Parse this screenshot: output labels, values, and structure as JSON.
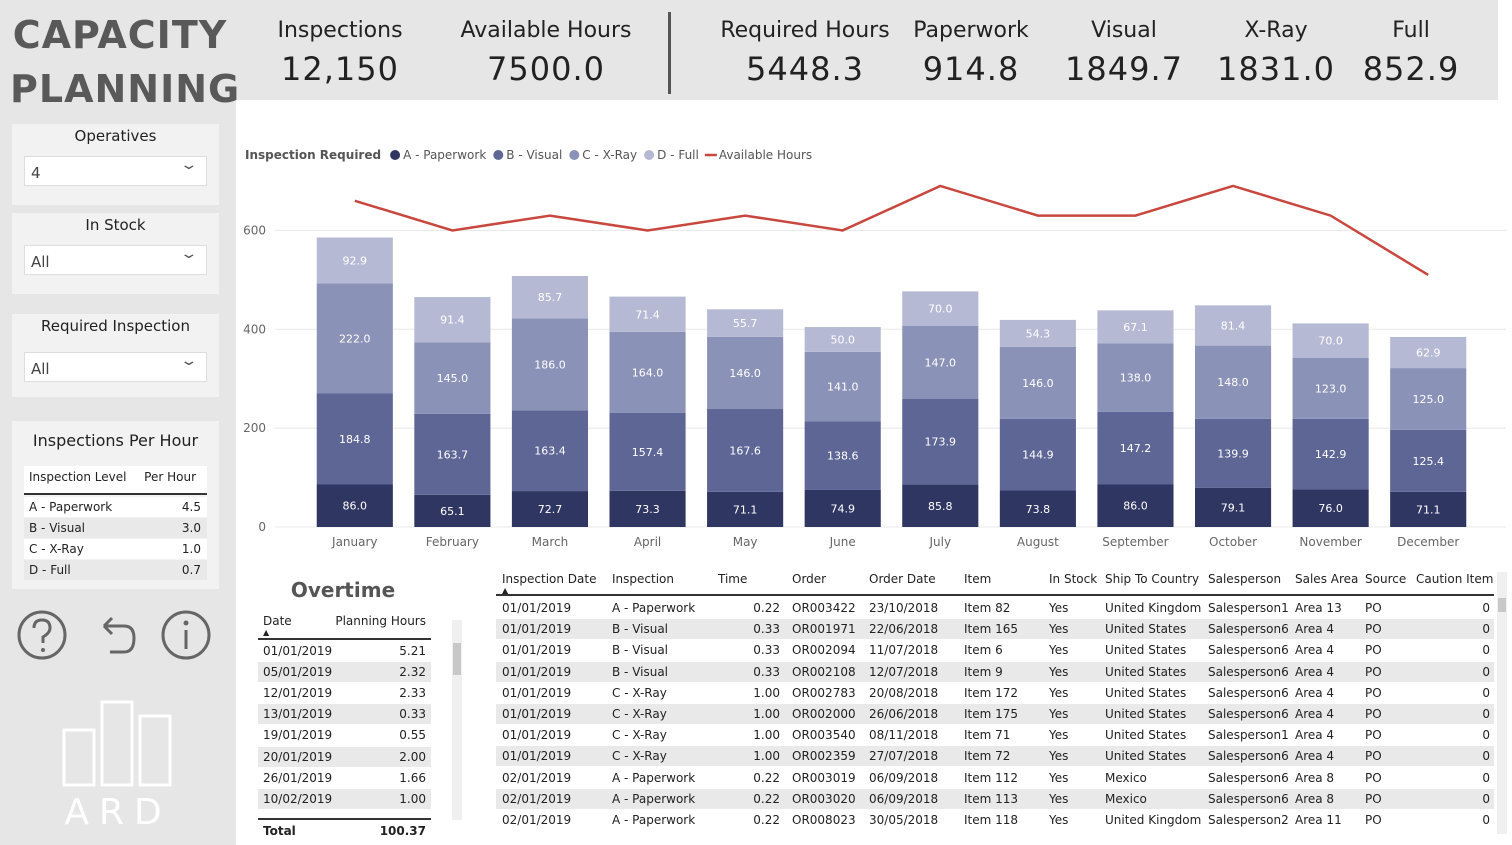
{
  "header": {
    "title": "CAPACITY PLANNING",
    "kpis": [
      {
        "label": "Inspections",
        "value": "12,150"
      },
      {
        "label": "Available Hours",
        "value": "7500.0"
      },
      {
        "label": "Required Hours",
        "value": "5448.3"
      },
      {
        "label": "Paperwork",
        "value": "914.8"
      },
      {
        "label": "Visual",
        "value": "1849.7"
      },
      {
        "label": "X-Ray",
        "value": "1831.0"
      },
      {
        "label": "Full",
        "value": "852.9"
      }
    ]
  },
  "filters": [
    {
      "label": "Operatives",
      "value": "4"
    },
    {
      "label": "In Stock",
      "value": "All"
    },
    {
      "label": "Required Inspection",
      "value": "All"
    }
  ],
  "per_hour": {
    "title": "Inspections Per Hour",
    "columns": [
      "Inspection Level",
      "Per Hour"
    ],
    "rows": [
      [
        "A - Paperwork",
        "4.5"
      ],
      [
        "B - Visual",
        "3.0"
      ],
      [
        "C - X-Ray",
        "1.0"
      ],
      [
        "D - Full",
        "0.7"
      ]
    ]
  },
  "logo": "ARD",
  "overtime": {
    "title": "Overtime",
    "columns": [
      "Date",
      "Planning Hours"
    ],
    "rows": [
      [
        "01/01/2019",
        "5.21"
      ],
      [
        "05/01/2019",
        "2.32"
      ],
      [
        "12/01/2019",
        "2.33"
      ],
      [
        "13/01/2019",
        "0.33"
      ],
      [
        "19/01/2019",
        "0.55"
      ],
      [
        "20/01/2019",
        "2.00"
      ],
      [
        "26/01/2019",
        "1.66"
      ],
      [
        "10/02/2019",
        "1.00"
      ]
    ],
    "total": [
      "Total",
      "100.37"
    ]
  },
  "detail": {
    "columns": [
      "Inspection Date",
      "Inspection",
      "Time",
      "Order",
      "Order Date",
      "Item",
      "In Stock",
      "Ship To Country",
      "Salesperson",
      "Sales Area",
      "Source",
      "Caution Item"
    ],
    "rows": [
      [
        "01/01/2019",
        "A - Paperwork",
        "0.22",
        "OR003422",
        "23/10/2018",
        "Item 82",
        "Yes",
        "United Kingdom",
        "Salesperson1",
        "Area 13",
        "PO",
        "0"
      ],
      [
        "01/01/2019",
        "B - Visual",
        "0.33",
        "OR001971",
        "22/06/2018",
        "Item 165",
        "Yes",
        "United States",
        "Salesperson6",
        "Area 4",
        "PO",
        "0"
      ],
      [
        "01/01/2019",
        "B - Visual",
        "0.33",
        "OR002094",
        "11/07/2018",
        "Item 6",
        "Yes",
        "United States",
        "Salesperson6",
        "Area 4",
        "PO",
        "0"
      ],
      [
        "01/01/2019",
        "B - Visual",
        "0.33",
        "OR002108",
        "12/07/2018",
        "Item 9",
        "Yes",
        "United States",
        "Salesperson6",
        "Area 4",
        "PO",
        "0"
      ],
      [
        "01/01/2019",
        "C - X-Ray",
        "1.00",
        "OR002783",
        "20/08/2018",
        "Item 172",
        "Yes",
        "United States",
        "Salesperson6",
        "Area 4",
        "PO",
        "0"
      ],
      [
        "01/01/2019",
        "C - X-Ray",
        "1.00",
        "OR002000",
        "26/06/2018",
        "Item 175",
        "Yes",
        "United States",
        "Salesperson6",
        "Area 4",
        "PO",
        "0"
      ],
      [
        "01/01/2019",
        "C - X-Ray",
        "1.00",
        "OR003540",
        "08/11/2018",
        "Item 71",
        "Yes",
        "United States",
        "Salesperson1",
        "Area 4",
        "PO",
        "0"
      ],
      [
        "01/01/2019",
        "C - X-Ray",
        "1.00",
        "OR002359",
        "27/07/2018",
        "Item 72",
        "Yes",
        "United States",
        "Salesperson6",
        "Area 4",
        "PO",
        "0"
      ],
      [
        "02/01/2019",
        "A - Paperwork",
        "0.22",
        "OR003019",
        "06/09/2018",
        "Item 112",
        "Yes",
        "Mexico",
        "Salesperson6",
        "Area 8",
        "PO",
        "0"
      ],
      [
        "02/01/2019",
        "A - Paperwork",
        "0.22",
        "OR003020",
        "06/09/2018",
        "Item 113",
        "Yes",
        "Mexico",
        "Salesperson6",
        "Area 8",
        "PO",
        "0"
      ],
      [
        "02/01/2019",
        "A - Paperwork",
        "0.22",
        "OR008023",
        "30/05/2018",
        "Item 118",
        "Yes",
        "United Kingdom",
        "Salesperson2",
        "Area 11",
        "PO",
        "0"
      ]
    ]
  },
  "chart_data": {
    "type": "bar",
    "stacked": true,
    "legend_title": "Inspection Required",
    "categories": [
      "January",
      "February",
      "March",
      "April",
      "May",
      "June",
      "July",
      "August",
      "September",
      "October",
      "November",
      "December"
    ],
    "series": [
      {
        "name": "A - Paperwork",
        "color": "#2f3662",
        "values": [
          86.0,
          65.1,
          72.7,
          73.3,
          71.1,
          74.9,
          85.8,
          73.8,
          86.0,
          79.1,
          76.0,
          71.1
        ],
        "value_labels": [
          "86.0",
          "65.1",
          "72.7",
          "73.3",
          "71.1",
          "74.9",
          "85.8",
          "73.8",
          "86.0",
          "79.1",
          "76.0",
          "71.1"
        ]
      },
      {
        "name": "B - Visual",
        "color": "#5d6695",
        "values": [
          184.8,
          163.7,
          163.4,
          157.4,
          167.6,
          138.6,
          173.9,
          144.9,
          147.2,
          139.9,
          142.9,
          125.4
        ],
        "value_labels": [
          "184.8",
          "163.7",
          "163.4",
          "157.4",
          "167.6",
          "138.6",
          "173.9",
          "144.9",
          "147.2",
          "139.9",
          "142.9",
          "125.4"
        ]
      },
      {
        "name": "C - X-Ray",
        "color": "#8b92b8",
        "values": [
          222.0,
          145.0,
          186.0,
          164.0,
          146.0,
          141.0,
          147.0,
          146.0,
          138.0,
          148.0,
          123.0,
          125.0
        ],
        "value_labels": [
          "222.0",
          "145.0",
          "186.0",
          "164.0",
          "146.0",
          "141.0",
          "147.0",
          "146.0",
          "138.0",
          "148.0",
          "123.0",
          "125.0"
        ]
      },
      {
        "name": "D - Full",
        "color": "#b5b9d4",
        "values": [
          92.9,
          91.4,
          85.7,
          71.4,
          55.7,
          50.0,
          70.0,
          54.3,
          67.1,
          81.4,
          70.0,
          62.9
        ],
        "value_labels": [
          "92.9",
          "91.4",
          "85.7",
          "71.4",
          "55.7",
          "50.0",
          "70.0",
          "54.3",
          "67.1",
          "81.4",
          "70.0",
          "62.9"
        ]
      },
      {
        "name": "Available Hours",
        "type": "line",
        "color": "#c8473e",
        "values": [
          660,
          600,
          630,
          600,
          630,
          600,
          690,
          630,
          630,
          690,
          630,
          510
        ]
      }
    ],
    "ylim": [
      0,
      700
    ],
    "yticks": [
      0,
      200,
      400,
      600
    ],
    "grid": true
  }
}
